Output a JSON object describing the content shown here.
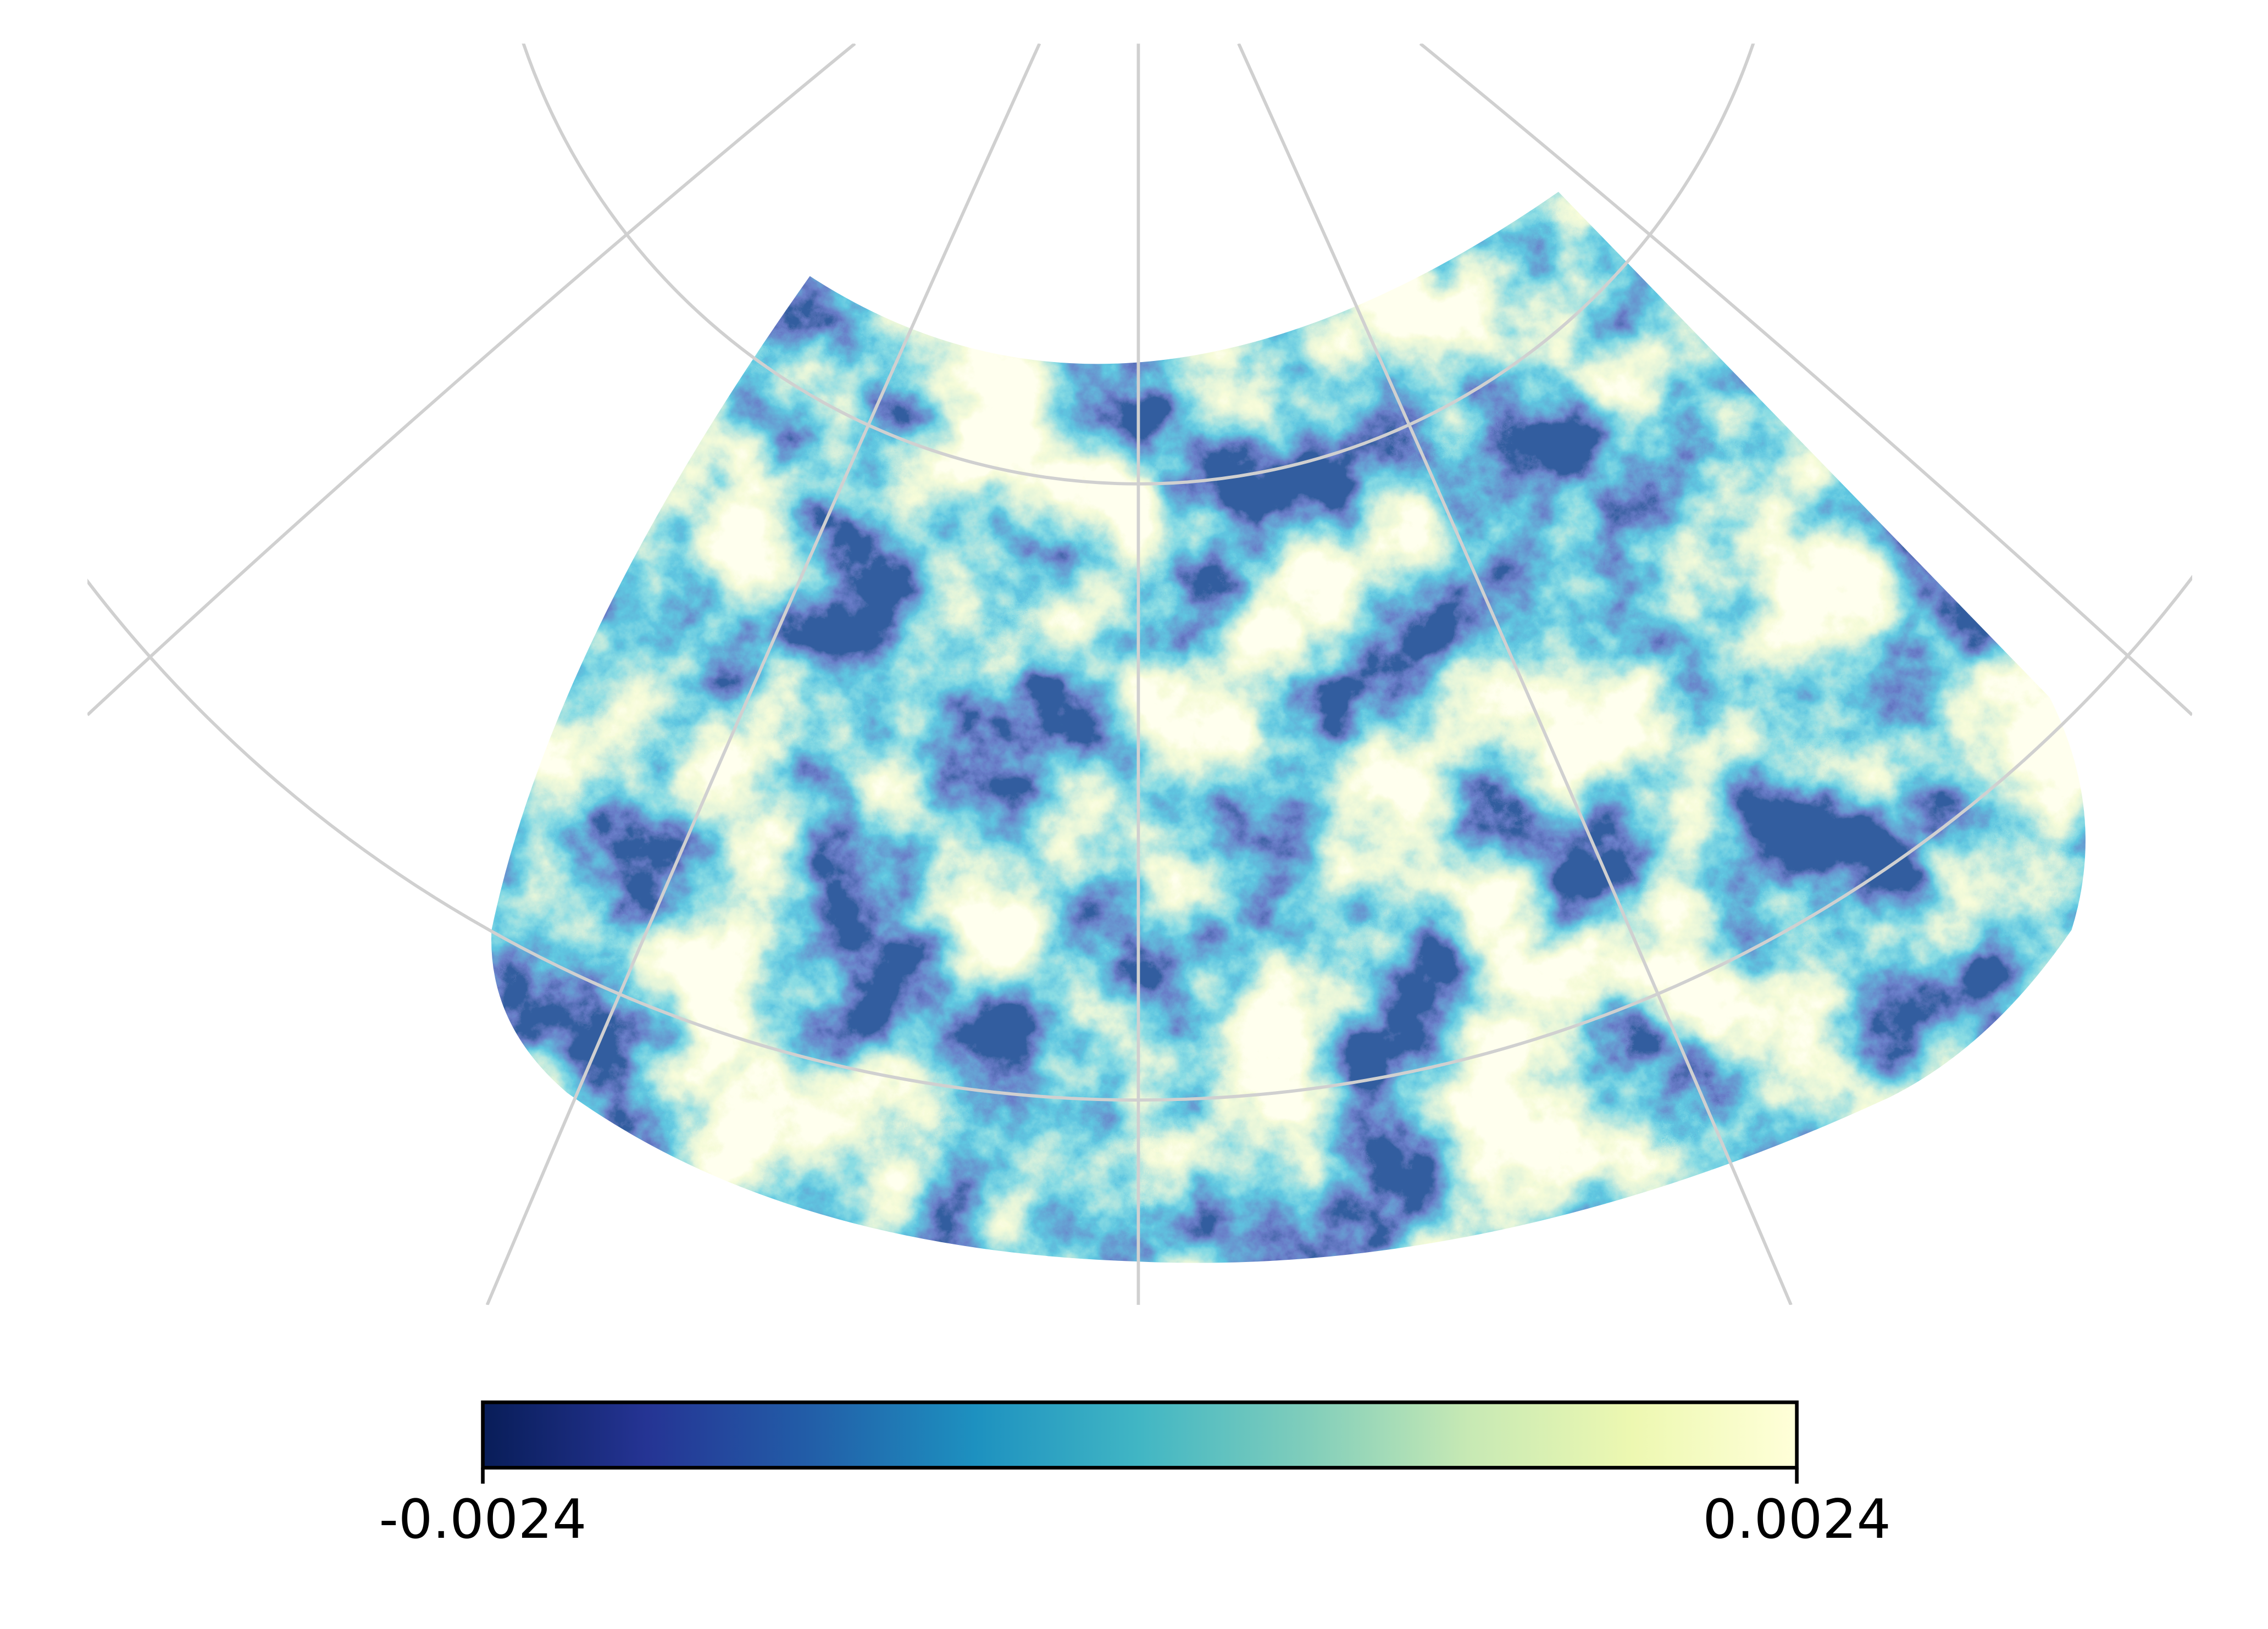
{
  "map": {
    "type": "sky-map",
    "colorbar": {
      "lim": [
        -0.0024,
        0.0024
      ],
      "ticks": [
        -0.0024,
        0.0024
      ],
      "colormap": [
        "#081d58",
        "#253494",
        "#225ea8",
        "#1d91c0",
        "#41b6c4",
        "#7fcdbb",
        "#c7e9b4",
        "#edf8b1",
        "#ffffd9"
      ]
    },
    "grid": true,
    "grid_color": "#d0d0d0"
  }
}
